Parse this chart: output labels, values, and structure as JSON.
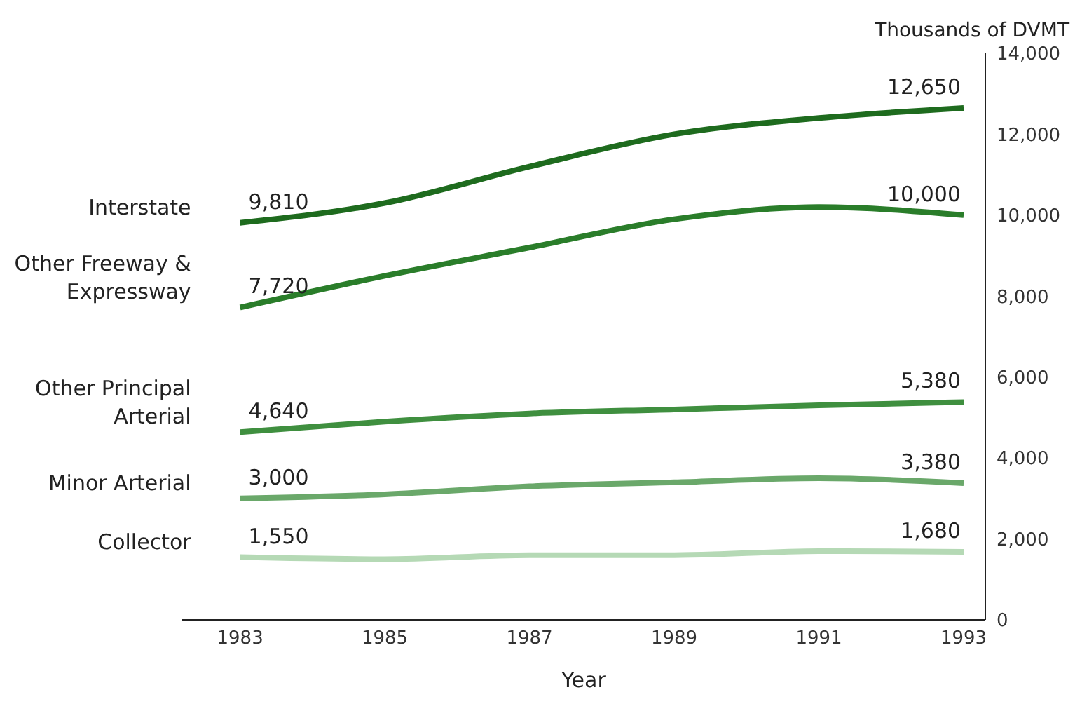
{
  "chart_data": {
    "type": "line",
    "xlabel": "Year",
    "ylabel": "Thousands of DVMT",
    "x": [
      1983,
      1985,
      1987,
      1989,
      1991,
      1993
    ],
    "xlim": [
      1982.2,
      1993.3
    ],
    "xticks": [
      1983,
      1985,
      1987,
      1989,
      1991,
      1993
    ],
    "ylim": [
      0,
      14000
    ],
    "yticks": [
      0,
      {
        "value": 2000,
        "label": "2,000"
      },
      {
        "value": 4000,
        "label": "4,000"
      },
      {
        "value": 6000,
        "label": "6,000"
      },
      {
        "value": 8000,
        "label": "8,000"
      },
      {
        "value": 10000,
        "label": "10,000"
      },
      {
        "value": 12000,
        "label": "12,000"
      },
      {
        "value": 14000,
        "label": "14,000"
      }
    ],
    "grid": false,
    "legend": false,
    "marker": "none",
    "line_style": "solid",
    "series": [
      {
        "name": "Interstate",
        "color": "#1e6b1e",
        "values": [
          9810,
          10300,
          11200,
          12000,
          12400,
          12650
        ],
        "value_labels": [
          "9,810",
          null,
          null,
          null,
          null,
          "12,650"
        ]
      },
      {
        "name": "Other Freeway & Expressway",
        "color": "#2a7d2a",
        "values": [
          7720,
          8500,
          9200,
          9900,
          10200,
          10000
        ],
        "value_labels": [
          "7,720",
          null,
          null,
          null,
          null,
          "10,000"
        ]
      },
      {
        "name": "Other Principal Arterial",
        "color": "#3f8f3f",
        "values": [
          4640,
          4900,
          5100,
          5200,
          5300,
          5380
        ],
        "value_labels": [
          "4,640",
          null,
          null,
          null,
          null,
          "5,380"
        ]
      },
      {
        "name": "Minor Arterial",
        "color": "#6aa86a",
        "values": [
          3000,
          3100,
          3300,
          3400,
          3500,
          3380
        ],
        "value_labels": [
          "3,000",
          null,
          null,
          null,
          null,
          "3,380"
        ]
      },
      {
        "name": "Collector",
        "color": "#b5d9b5",
        "values": [
          1550,
          1500,
          1600,
          1600,
          1700,
          1680
        ],
        "value_labels": [
          "1,550",
          null,
          null,
          null,
          null,
          "1,680"
        ]
      }
    ]
  }
}
